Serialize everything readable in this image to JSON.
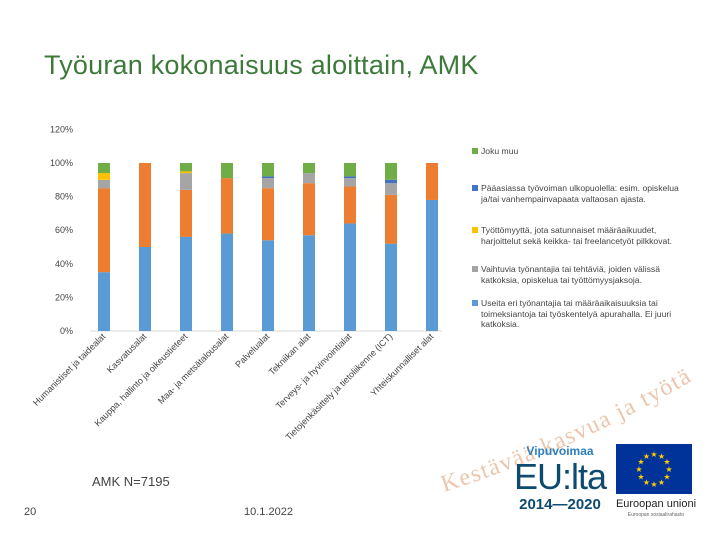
{
  "slide": {
    "title": "Työuran kokonaisuus aloittain, AMK",
    "note": "AMK N=7195",
    "page_number": "20",
    "date": "10.1.2022",
    "watermark": "Kestävää kasvua ja työtä -ohjelma",
    "brand_top": "Vipuvoimaa",
    "brand_main": "EU:lta",
    "brand_years": "2014—2020",
    "eu_name": "Euroopan unioni",
    "eu_sub": "Euroopan sosiaalirahasto"
  },
  "chart_data": {
    "type": "bar",
    "stacked": true,
    "title": "",
    "xlabel": "",
    "ylabel": "",
    "ylim": [
      0,
      120
    ],
    "y_ticks": [
      "0%",
      "20%",
      "40%",
      "60%",
      "80%",
      "100%",
      "120%"
    ],
    "grid": false,
    "legend_position": "right",
    "categories": [
      "Humanistiset ja taidealat",
      "Kasvatusalat",
      "Kauppa, hallinto ja oikeustieteet",
      "Maa- ja metsätalousalat",
      "Palvelualat",
      "Tekniikan alat",
      "Terveys- ja hyvinvointialat",
      "Tietojenkäsittely ja tietoliikenne (ICT)",
      "Yhteiskunnalliset alat"
    ],
    "series": [
      {
        "name": "Useita eri työnantajia tai määräaikaisuuksia tai toimeksiantoja tai työskentelyä apurahalla. Ei juuri katkoksia.",
        "color": "#5b9bd5",
        "values": [
          35,
          50,
          56,
          58,
          54,
          57,
          64,
          52,
          78
        ]
      },
      {
        "name": "",
        "color": "#ed7d31",
        "values": [
          50,
          50,
          28,
          33,
          31,
          31,
          22,
          29,
          22
        ]
      },
      {
        "name": "Vaihtuvia työnantajia tai tehtäviä, joiden välissä katkoksia, opiskelua tai työttömyysjaksoja.",
        "color": "#a5a5a5",
        "values": [
          5,
          0,
          10,
          0,
          6,
          6,
          5,
          7,
          0
        ]
      },
      {
        "name": "Työttömyyttä, jota satunnaiset määräaikuudet, harjoittelut sekä keikka- tai freelancetyöt pilkkovat.",
        "color": "#ffc000",
        "values": [
          4,
          0,
          1,
          0,
          0,
          0,
          0,
          0,
          0
        ]
      },
      {
        "name": "Pääasiassa työvoiman ulkopuolella: esim. opiskelua ja/tai vanhempainvapaata valtaosan ajasta.",
        "color": "#4472c4",
        "values": [
          0,
          0,
          0,
          0,
          1,
          0,
          1,
          2,
          0
        ]
      },
      {
        "name": "Joku muu",
        "color": "#70ad47",
        "values": [
          6,
          0,
          5,
          9,
          8,
          6,
          8,
          10,
          0
        ]
      }
    ],
    "legend_order": [
      5,
      4,
      3,
      2,
      0
    ]
  }
}
